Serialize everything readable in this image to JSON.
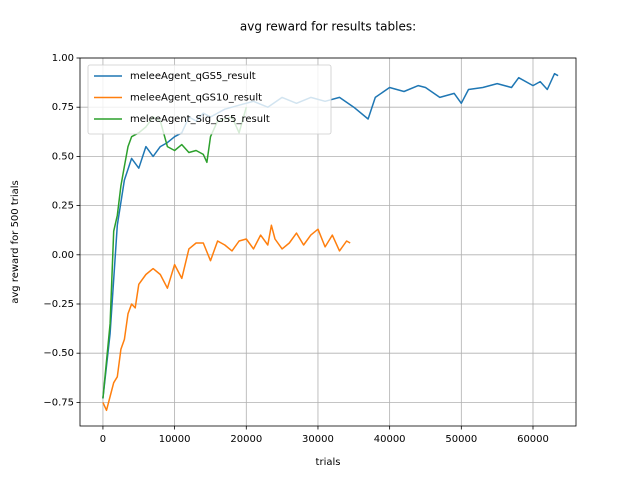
{
  "chart_data": {
    "type": "line",
    "title": "avg reward for results tables:",
    "x_label": "trials",
    "y_label": "avg reward for 500 trials",
    "xlim": [
      -3200,
      66000
    ],
    "ylim": [
      -0.87,
      1.0
    ],
    "xticks": [
      0,
      10000,
      20000,
      30000,
      40000,
      50000,
      60000
    ],
    "yticks": [
      {
        "value": -0.75,
        "label": "−0.75"
      },
      {
        "value": -0.5,
        "label": "−0.50"
      },
      {
        "value": -0.25,
        "label": "−0.25"
      },
      {
        "value": 0,
        "label": "0.00"
      },
      {
        "value": 0.25,
        "label": "0.25"
      },
      {
        "value": 0.5,
        "label": "0.50"
      },
      {
        "value": 0.75,
        "label": "0.75"
      },
      {
        "value": 1.0,
        "label": "1.00"
      }
    ],
    "grid": true,
    "legend": "upper left",
    "series": [
      {
        "name": "meleeAgent_qGS5_result",
        "color": "#1f77b4",
        "x": [
          0,
          1000,
          2000,
          3000,
          4000,
          5000,
          6000,
          7000,
          8000,
          9000,
          10000,
          11000,
          12000,
          13000,
          14000,
          15000,
          17000,
          19000,
          21000,
          23000,
          25000,
          27000,
          29000,
          31000,
          33000,
          35000,
          37000,
          38000,
          40000,
          42000,
          44000,
          45000,
          47000,
          49000,
          50000,
          51000,
          53000,
          55000,
          57000,
          58000,
          60000,
          61000,
          62000,
          63000,
          63500
        ],
        "values": [
          -0.73,
          -0.4,
          0.15,
          0.38,
          0.49,
          0.44,
          0.55,
          0.5,
          0.55,
          0.57,
          0.6,
          0.62,
          0.7,
          0.68,
          0.72,
          0.7,
          0.74,
          0.76,
          0.78,
          0.75,
          0.8,
          0.77,
          0.8,
          0.78,
          0.8,
          0.75,
          0.69,
          0.8,
          0.85,
          0.83,
          0.86,
          0.85,
          0.8,
          0.82,
          0.77,
          0.84,
          0.85,
          0.87,
          0.85,
          0.9,
          0.86,
          0.88,
          0.84,
          0.92,
          0.91
        ]
      },
      {
        "name": "meleeAgent_qGS10_result",
        "color": "#ff7f0e",
        "x": [
          0,
          500,
          1000,
          1500,
          2000,
          2500,
          3000,
          3500,
          4000,
          4500,
          5000,
          6000,
          7000,
          8000,
          9000,
          10000,
          11000,
          12000,
          13000,
          14000,
          15000,
          16000,
          17000,
          18000,
          19000,
          20000,
          21000,
          22000,
          23000,
          23500,
          24000,
          25000,
          26000,
          27000,
          28000,
          29000,
          30000,
          31000,
          32000,
          33000,
          34000,
          34500
        ],
        "values": [
          -0.75,
          -0.79,
          -0.72,
          -0.65,
          -0.62,
          -0.48,
          -0.43,
          -0.3,
          -0.25,
          -0.27,
          -0.15,
          -0.1,
          -0.07,
          -0.1,
          -0.17,
          -0.05,
          -0.12,
          0.03,
          0.06,
          0.06,
          -0.03,
          0.07,
          0.05,
          0.02,
          0.07,
          0.08,
          0.03,
          0.1,
          0.05,
          0.15,
          0.08,
          0.03,
          0.06,
          0.11,
          0.05,
          0.1,
          0.13,
          0.04,
          0.1,
          0.02,
          0.07,
          0.06
        ]
      },
      {
        "name": "meleeAgent_Sig_GS5_result",
        "color": "#2ca02c",
        "x": [
          0,
          1000,
          1500,
          2000,
          2500,
          3000,
          3500,
          4000,
          5000,
          6000,
          7000,
          8000,
          9000,
          10000,
          11000,
          12000,
          13000,
          14000,
          14500,
          15000,
          16000,
          18000,
          19000,
          20000
        ],
        "values": [
          -0.73,
          -0.35,
          0.12,
          0.2,
          0.35,
          0.45,
          0.55,
          0.6,
          0.62,
          0.65,
          0.7,
          0.68,
          0.55,
          0.53,
          0.56,
          0.52,
          0.53,
          0.51,
          0.47,
          0.6,
          0.68,
          0.7,
          0.62,
          0.75
        ]
      }
    ]
  }
}
